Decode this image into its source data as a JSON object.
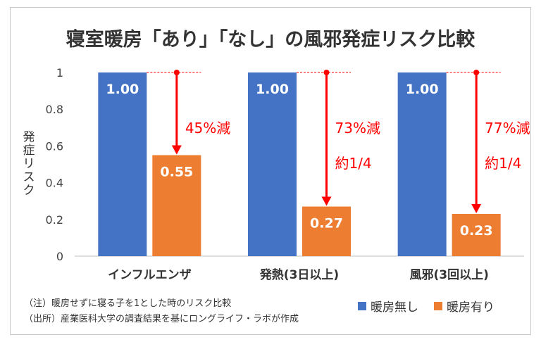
{
  "chart_data": {
    "type": "bar",
    "title": "寝室暖房「あり」「なし」の風邪発症リスク比較",
    "ylabel": "発症リスク",
    "xlabel": "",
    "ylim": [
      0,
      1
    ],
    "yticks": [
      "0",
      "0.2",
      "0.4",
      "0.6",
      "0.8",
      "1"
    ],
    "categories": [
      "インフルエンザ",
      "発熱(3日以上)",
      "風邪(3回以上)"
    ],
    "series": [
      {
        "name": "暖房無し",
        "color": "#4472C4",
        "values": [
          1.0,
          1.0,
          1.0
        ],
        "labels": [
          "1.00",
          "1.00",
          "1.00"
        ]
      },
      {
        "name": "暖房有り",
        "color": "#ED7D31",
        "values": [
          0.55,
          0.27,
          0.23
        ],
        "labels": [
          "0.55",
          "0.27",
          "0.23"
        ]
      }
    ],
    "annotations": [
      {
        "category": "インフルエンザ",
        "texts": [
          "45%減"
        ]
      },
      {
        "category": "発熱(3日以上)",
        "texts": [
          "73%減",
          "約1/4"
        ]
      },
      {
        "category": "風邪(3回以上)",
        "texts": [
          "77%減",
          "約1/4"
        ]
      }
    ],
    "annotation_color": "#FF0000",
    "grid": false,
    "legend_position": "bottom-right"
  },
  "notes": [
    "（注）暖房せずに寝る子を1とした時のリスク比較",
    "（出所）産業医科大学の調査結果を基にロングライフ・ラボが作成"
  ]
}
